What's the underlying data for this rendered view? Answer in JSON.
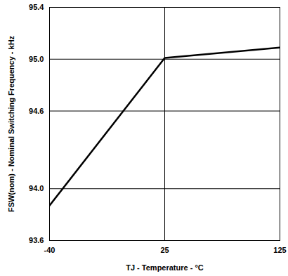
{
  "chart_data": {
    "type": "line",
    "x_label": "TJ - Temperature - °C",
    "y_label": "FSW(nom) - Nominal Switching Frequency - kHz",
    "categories": [
      "-40",
      "25",
      "125"
    ],
    "values": [
      93.87,
      95.01,
      95.09
    ],
    "color": "#000000",
    "ylim": [
      93.6,
      95.4
    ],
    "yticks": [
      93.6,
      {
        "value": 94,
        "label": "94.0"
      },
      94.6,
      {
        "value": 95,
        "label": "95.0"
      },
      95.4
    ],
    "grid": true
  }
}
